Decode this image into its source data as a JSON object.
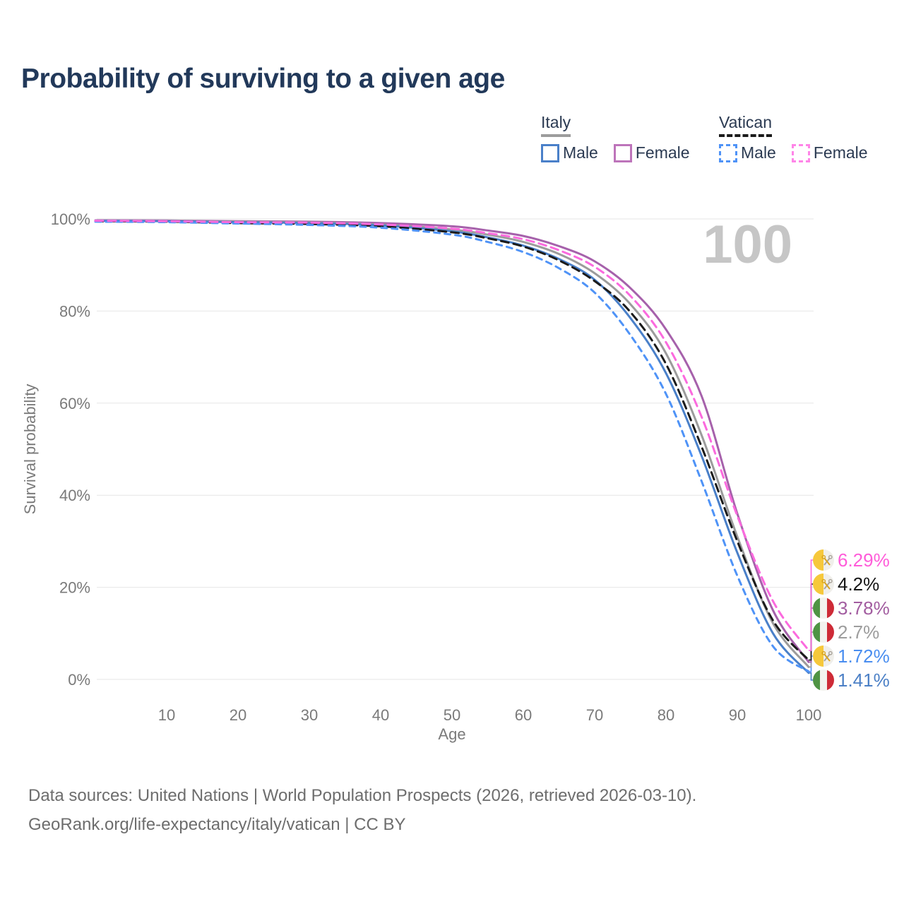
{
  "header": {
    "title": "Probability of surviving to a given age"
  },
  "legend": {
    "groups": [
      {
        "name": "Italy",
        "line_color": "#9c9c9c",
        "line_style": "solid",
        "items": [
          {
            "label": "Male",
            "color": "#4a80c9"
          },
          {
            "label": "Female",
            "color": "#bd74ba"
          }
        ]
      },
      {
        "name": "Vatican",
        "line_color": "#1b1b1b",
        "line_style": "dashed",
        "items": [
          {
            "label": "Male",
            "color": "#4f93f7"
          },
          {
            "label": "Female",
            "color": "#ff85e8"
          }
        ]
      }
    ]
  },
  "chart_data": {
    "type": "line",
    "title": "Probability of surviving to a given age",
    "xlabel": "Age",
    "ylabel": "Survival probability",
    "xlim": [
      0,
      100
    ],
    "ylim": [
      0,
      100
    ],
    "x_ticks": [
      10,
      20,
      30,
      40,
      50,
      60,
      70,
      80,
      90,
      100
    ],
    "y_ticks": [
      0,
      20,
      40,
      60,
      80,
      100
    ],
    "y_tick_suffix": "%",
    "grid": "horizontal",
    "legend_position": "top-right",
    "watermark": "100",
    "x": [
      0,
      10,
      20,
      30,
      40,
      50,
      55,
      60,
      65,
      70,
      75,
      80,
      85,
      90,
      95,
      100
    ],
    "series": [
      {
        "name": "Italy Male",
        "country": "Italy",
        "flag": "italy",
        "sex": "male",
        "style": "solid",
        "color": "#4a80c9",
        "end_label": "1.41%",
        "end_label_color": "#4c80c6",
        "end_value": 1.41,
        "values": [
          99.6,
          99.5,
          99.3,
          99.1,
          98.6,
          97.3,
          96.0,
          94.2,
          91.3,
          86.8,
          78.5,
          66.5,
          48.5,
          27.5,
          10.0,
          1.41
        ]
      },
      {
        "name": "Italy Female",
        "country": "Italy",
        "flag": "italy",
        "sex": "female",
        "style": "solid",
        "color": "#a661ab",
        "end_label": "3.78%",
        "end_label_color": "#a25da0",
        "end_value": 3.78,
        "values": [
          99.7,
          99.65,
          99.5,
          99.4,
          99.1,
          98.4,
          97.5,
          96.3,
          94.1,
          90.8,
          85.0,
          76.0,
          61.5,
          36.0,
          15.0,
          3.78
        ]
      },
      {
        "name": "Italy Total",
        "country": "Italy",
        "flag": "italy",
        "sex": "all",
        "style": "solid",
        "color": "#9c9c9c",
        "end_label": "2.7%",
        "end_label_color": "#9d9d9d",
        "end_value": 2.7,
        "values": [
          99.6,
          99.55,
          99.4,
          99.25,
          98.8,
          97.7,
          96.6,
          95.0,
          92.4,
          88.2,
          81.5,
          70.8,
          53.0,
          31.0,
          12.2,
          2.7
        ]
      },
      {
        "name": "Vatican Male",
        "country": "Vatican",
        "flag": "vatican",
        "sex": "male",
        "style": "dashed",
        "color": "#4f93f7",
        "end_label": "1.72%",
        "end_label_color": "#4a8ef0",
        "end_value": 1.72,
        "values": [
          99.4,
          99.3,
          99.0,
          98.7,
          98.1,
          96.6,
          95.0,
          92.8,
          89.3,
          84.0,
          74.8,
          62.0,
          43.0,
          22.5,
          7.2,
          1.72
        ]
      },
      {
        "name": "Vatican Female",
        "country": "Vatican",
        "flag": "vatican",
        "sex": "female",
        "style": "dashed",
        "color": "#fb6ade",
        "end_label": "6.29%",
        "end_label_color": "#ff5cd9",
        "end_value": 6.29,
        "values": [
          99.6,
          99.5,
          99.3,
          99.2,
          98.8,
          97.9,
          96.9,
          95.6,
          93.2,
          89.6,
          83.3,
          73.2,
          57.0,
          35.5,
          17.0,
          6.29
        ]
      },
      {
        "name": "Vatican Total",
        "country": "Vatican",
        "flag": "vatican",
        "sex": "all",
        "style": "dashed",
        "color": "#1b1b1b",
        "end_label": "4.2%",
        "end_label_color": "#151515",
        "end_value": 4.2,
        "values": [
          99.5,
          99.4,
          99.1,
          98.9,
          98.4,
          97.1,
          95.8,
          94.0,
          91.0,
          86.5,
          79.8,
          68.5,
          50.5,
          30.0,
          12.8,
          4.2
        ]
      }
    ]
  },
  "footer": {
    "line1": "Data sources: United Nations | World Population Prospects (2026, retrieved 2026-03-10).",
    "line2": "GeoRank.org/life-expectancy/italy/vatican | CC BY"
  }
}
